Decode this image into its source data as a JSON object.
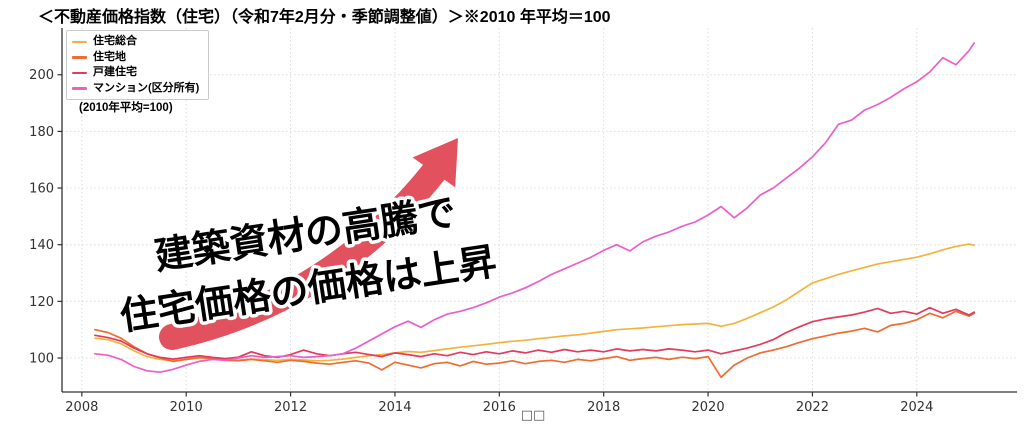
{
  "header": {
    "title": "＜不動産価格指数（住宅）（令和7年2月分・季節調整値）＞※2010 年平均＝100"
  },
  "legend": {
    "note": "(2010年平均=100)",
    "position": "upper-left"
  },
  "annotation": {
    "line1": "建築資材の高騰で",
    "line2": "住宅価格の価格は上昇",
    "arrow_color": "#e2525e",
    "text_color": "#000000",
    "text_outline": "#ffffff"
  },
  "chart_data": {
    "type": "line",
    "title": "＜不動産価格指数（住宅）（令和7年2月分・季節調整値）＞※2010 年平均＝100",
    "xlabel": "□□",
    "ylabel": "",
    "grid": true,
    "xlim": [
      2007.62,
      2025.92
    ],
    "ylim": [
      88,
      216.5
    ],
    "xticks": [
      2008,
      2010,
      2012,
      2014,
      2016,
      2018,
      2020,
      2022,
      2024
    ],
    "yticks": [
      100,
      120,
      140,
      160,
      180,
      200
    ],
    "axis_color": "#333333",
    "grid_color": "#dcdcdc",
    "x": [
      2008.25,
      2008.5,
      2008.75,
      2009,
      2009.25,
      2009.5,
      2009.75,
      2010,
      2010.25,
      2010.5,
      2010.75,
      2011,
      2011.25,
      2011.5,
      2011.75,
      2012,
      2012.25,
      2012.5,
      2012.75,
      2013,
      2013.25,
      2013.5,
      2013.75,
      2014,
      2014.25,
      2014.5,
      2014.75,
      2015,
      2015.25,
      2015.5,
      2015.75,
      2016,
      2016.25,
      2016.5,
      2016.75,
      2017,
      2017.25,
      2017.5,
      2017.75,
      2018,
      2018.25,
      2018.5,
      2018.75,
      2019,
      2019.25,
      2019.5,
      2019.75,
      2020,
      2020.25,
      2020.5,
      2020.75,
      2021,
      2021.25,
      2021.5,
      2021.75,
      2022,
      2022.25,
      2022.5,
      2022.75,
      2023,
      2023.25,
      2023.5,
      2023.75,
      2024,
      2024.25,
      2024.5,
      2024.75,
      2025,
      2025.1
    ],
    "series": [
      {
        "name": "住宅総合",
        "color": "#f2b33d",
        "values": [
          107,
          106.5,
          105,
          102.5,
          100.5,
          99.5,
          99,
          99.5,
          100,
          100,
          99.5,
          99.3,
          99.6,
          99.4,
          99.2,
          99.5,
          99.3,
          99,
          99.2,
          99.6,
          100.2,
          100.8,
          101.2,
          101.8,
          102.3,
          102,
          102.6,
          103.2,
          103.8,
          104.3,
          104.8,
          105.4,
          105.9,
          106.3,
          106.8,
          107.3,
          107.8,
          108.2,
          108.8,
          109.4,
          110,
          110.3,
          110.6,
          111,
          111.4,
          111.8,
          112,
          112.2,
          111.2,
          112.2,
          114,
          116,
          118,
          120.5,
          123.5,
          126.5,
          128,
          129.5,
          130.8,
          132,
          133.2,
          134,
          134.8,
          135.6,
          136.8,
          138.2,
          139.4,
          140.2,
          139.8
        ]
      },
      {
        "name": "住宅地",
        "color": "#ee6c30",
        "values": [
          110,
          109,
          107,
          104,
          101.5,
          100,
          98.8,
          99.5,
          100.2,
          99.8,
          99.2,
          99,
          99.5,
          99,
          98.5,
          99.2,
          98.8,
          98.2,
          97.8,
          98.5,
          99,
          98.2,
          95.8,
          98.5,
          97.5,
          96.5,
          98,
          98.5,
          97.2,
          98.8,
          97.8,
          98.2,
          99,
          98,
          98.8,
          99.2,
          98.5,
          99.5,
          99,
          99.8,
          100.5,
          99.2,
          99.8,
          100.2,
          99.5,
          100.3,
          99.8,
          100.5,
          93.2,
          97.5,
          100,
          101.8,
          102.8,
          104,
          105.5,
          106.8,
          107.8,
          108.8,
          109.5,
          110.5,
          109.2,
          111.5,
          112.2,
          113.5,
          115.8,
          114.2,
          116.5,
          114.8,
          115.8
        ]
      },
      {
        "name": "戸建住宅",
        "color": "#e43a5e",
        "values": [
          108,
          107.2,
          106,
          103.5,
          101.5,
          100.2,
          99.6,
          100.2,
          100.8,
          100.2,
          99.8,
          100.3,
          102.2,
          100.8,
          100.2,
          101.2,
          102.8,
          101.5,
          100.8,
          101.5,
          102,
          101.2,
          100.5,
          101.8,
          101.2,
          100.5,
          101.5,
          100.8,
          102,
          101.2,
          102.2,
          101.5,
          102.5,
          101.8,
          102.8,
          102,
          103,
          102.2,
          102.8,
          102.2,
          103.2,
          102.5,
          103,
          102.5,
          103.2,
          102.8,
          102.2,
          102.8,
          101.5,
          102.5,
          103.5,
          104.8,
          106.5,
          109,
          111,
          112.8,
          113.8,
          114.5,
          115.2,
          116.2,
          117.5,
          115.8,
          116.5,
          115.5,
          117.8,
          115.8,
          117.2,
          115.2,
          116.2
        ]
      },
      {
        "name": "マンション(区分所有)",
        "color": "#ea5fc8",
        "values": [
          101.5,
          101,
          99.5,
          97,
          95.5,
          95,
          96,
          97.5,
          98.8,
          99.5,
          99.2,
          100,
          100.8,
          100.2,
          100.5,
          100.8,
          100.2,
          100.5,
          100.8,
          101.5,
          103.5,
          106,
          108.5,
          111,
          113,
          110.8,
          113.5,
          115.5,
          116.5,
          117.8,
          119.5,
          121.5,
          123,
          124.8,
          127,
          129.5,
          131.5,
          133.5,
          135.5,
          138,
          140,
          137.8,
          141,
          143,
          144.5,
          146.5,
          148,
          150.5,
          153.5,
          149.5,
          153,
          157.5,
          160,
          163.5,
          167,
          171,
          176,
          182.5,
          184,
          187.5,
          189.5,
          192,
          195,
          197.5,
          201,
          206,
          203.5,
          208.5,
          211.2
        ]
      }
    ]
  }
}
